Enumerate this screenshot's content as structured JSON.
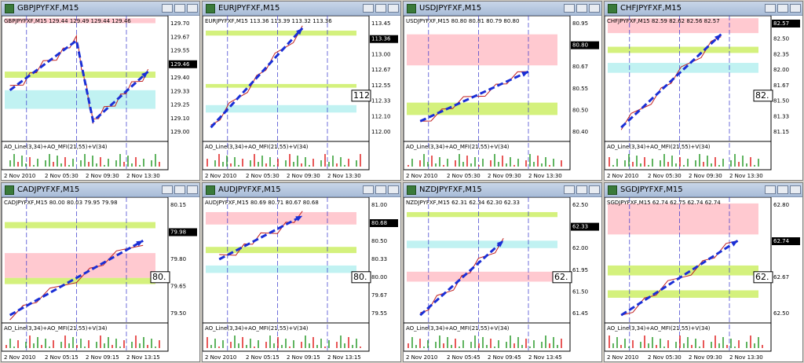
{
  "windows": [
    {
      "title": "GBPJPYFXF,M15",
      "header": "GBPJPYFXF,M15 129.44 129.49 129.44 129.46",
      "price_labels": [
        "129.70",
        "129.67",
        "129.55",
        "129.46",
        "129.40",
        "129.33",
        "129.25",
        "129.10",
        "129.00"
      ],
      "box_label": null,
      "indicator": "AO_Line(3,34)+AO_MFI(21,55)+V(34)",
      "time_labels": [
        "2 Nov 2010",
        "2 Nov 05:30",
        "2 Nov 09:30",
        "2 Nov 13:30"
      ]
    },
    {
      "title": "EURJPYFXF,M15",
      "header": "EURJPYFXF,M15 113.36 113.39 113.32 113.36",
      "price_labels": [
        "113.45",
        "113.36",
        "113.00",
        "112.67",
        "112.55",
        "112.33",
        "112.10",
        "112.00"
      ],
      "box_label": "112",
      "indicator": "AO_Line(3,34)+AO_MFI(21,55)+V(34)",
      "time_labels": [
        "2 Nov 2010",
        "2 Nov 05:30",
        "2 Nov 09:30",
        "2 Nov 13:30"
      ]
    },
    {
      "title": "USDJPYFXF,M15",
      "header": "USDJPYFXF,M15 80.80 80.81 80.79 80.80",
      "price_labels": [
        "80.95",
        "80.80",
        "80.67",
        "80.55",
        "80.50",
        "80.40"
      ],
      "box_label": null,
      "indicator": "AO_Line(3,34)+AO_MFI(21,55)+V(34)",
      "time_labels": [
        "2 Nov 2010",
        "2 Nov 05:30",
        "2 Nov 09:30",
        "2 Nov 13:30"
      ]
    },
    {
      "title": "CHFJPYFXF,M15",
      "header": "CHFJPYFXF,M15 82.59 82.62 82.56 82.57",
      "price_labels": [
        "82.57",
        "82.50",
        "82.35",
        "82.00",
        "81.67",
        "81.50",
        "81.33",
        "81.15"
      ],
      "box_label": "82.",
      "indicator": "AO_Line(3,34)+AO_MFI(21,55)+V(34)",
      "time_labels": [
        "2 Nov 2010",
        "2 Nov 05:30",
        "2 Nov 09:30",
        "2 Nov 13:30"
      ]
    },
    {
      "title": "CADJPYFXF,M15",
      "header": "CADJPYFXF,M15 80.00 80.03 79.95 79.98",
      "price_labels": [
        "80.15",
        "79.98",
        "79.80",
        "79.65",
        "79.50"
      ],
      "box_label": "80.",
      "indicator": "AO_Line(3,34)+AO_MFI(21,55)+V(34)",
      "time_labels": [
        "2 Nov 2010",
        "2 Nov 05:15",
        "2 Nov 09:15",
        "2 Nov 13:15"
      ]
    },
    {
      "title": "AUDJPYFXF,M15",
      "header": "AUDJPYFXF,M15 80.69 80.71 80.67 80.68",
      "price_labels": [
        "81.00",
        "80.68",
        "80.50",
        "80.33",
        "80.00",
        "79.67",
        "79.55"
      ],
      "box_label": "80.",
      "indicator": "AO_Line(3,34)+AO_MFI(21,55)+V(34)",
      "time_labels": [
        "2 Nov 2010",
        "2 Nov 05:15",
        "2 Nov 09:15",
        "2 Nov 13:15"
      ]
    },
    {
      "title": "NZDJPYFXF,M15",
      "header": "NZDJPYFXF,M15 62.31 62.34 62.30 62.33",
      "price_labels": [
        "62.50",
        "62.33",
        "62.00",
        "61.95",
        "61.50",
        "61.45"
      ],
      "box_label": "62.",
      "indicator": "AO_Line(3,34)+AO_MFI(21,55)+V(34)",
      "time_labels": [
        "2 Nov 2010",
        "2 Nov 05:45",
        "2 Nov 09:45",
        "2 Nov 13:45"
      ]
    },
    {
      "title": "SGDJPYFXF,M15",
      "header": "SGDJPYFXF,M15 62.74 62.75 62.74 62.74",
      "price_labels": [
        "62.80",
        "62.74",
        "62.67",
        "62.50"
      ],
      "box_label": "62.",
      "indicator": "AO_Line(3,34)+AO_MFI(21,55)+V(34)",
      "time_labels": [
        "2 Nov 2010",
        "2 Nov 05:30",
        "2 Nov 09:30",
        "2 Nov 13:30"
      ]
    }
  ]
}
